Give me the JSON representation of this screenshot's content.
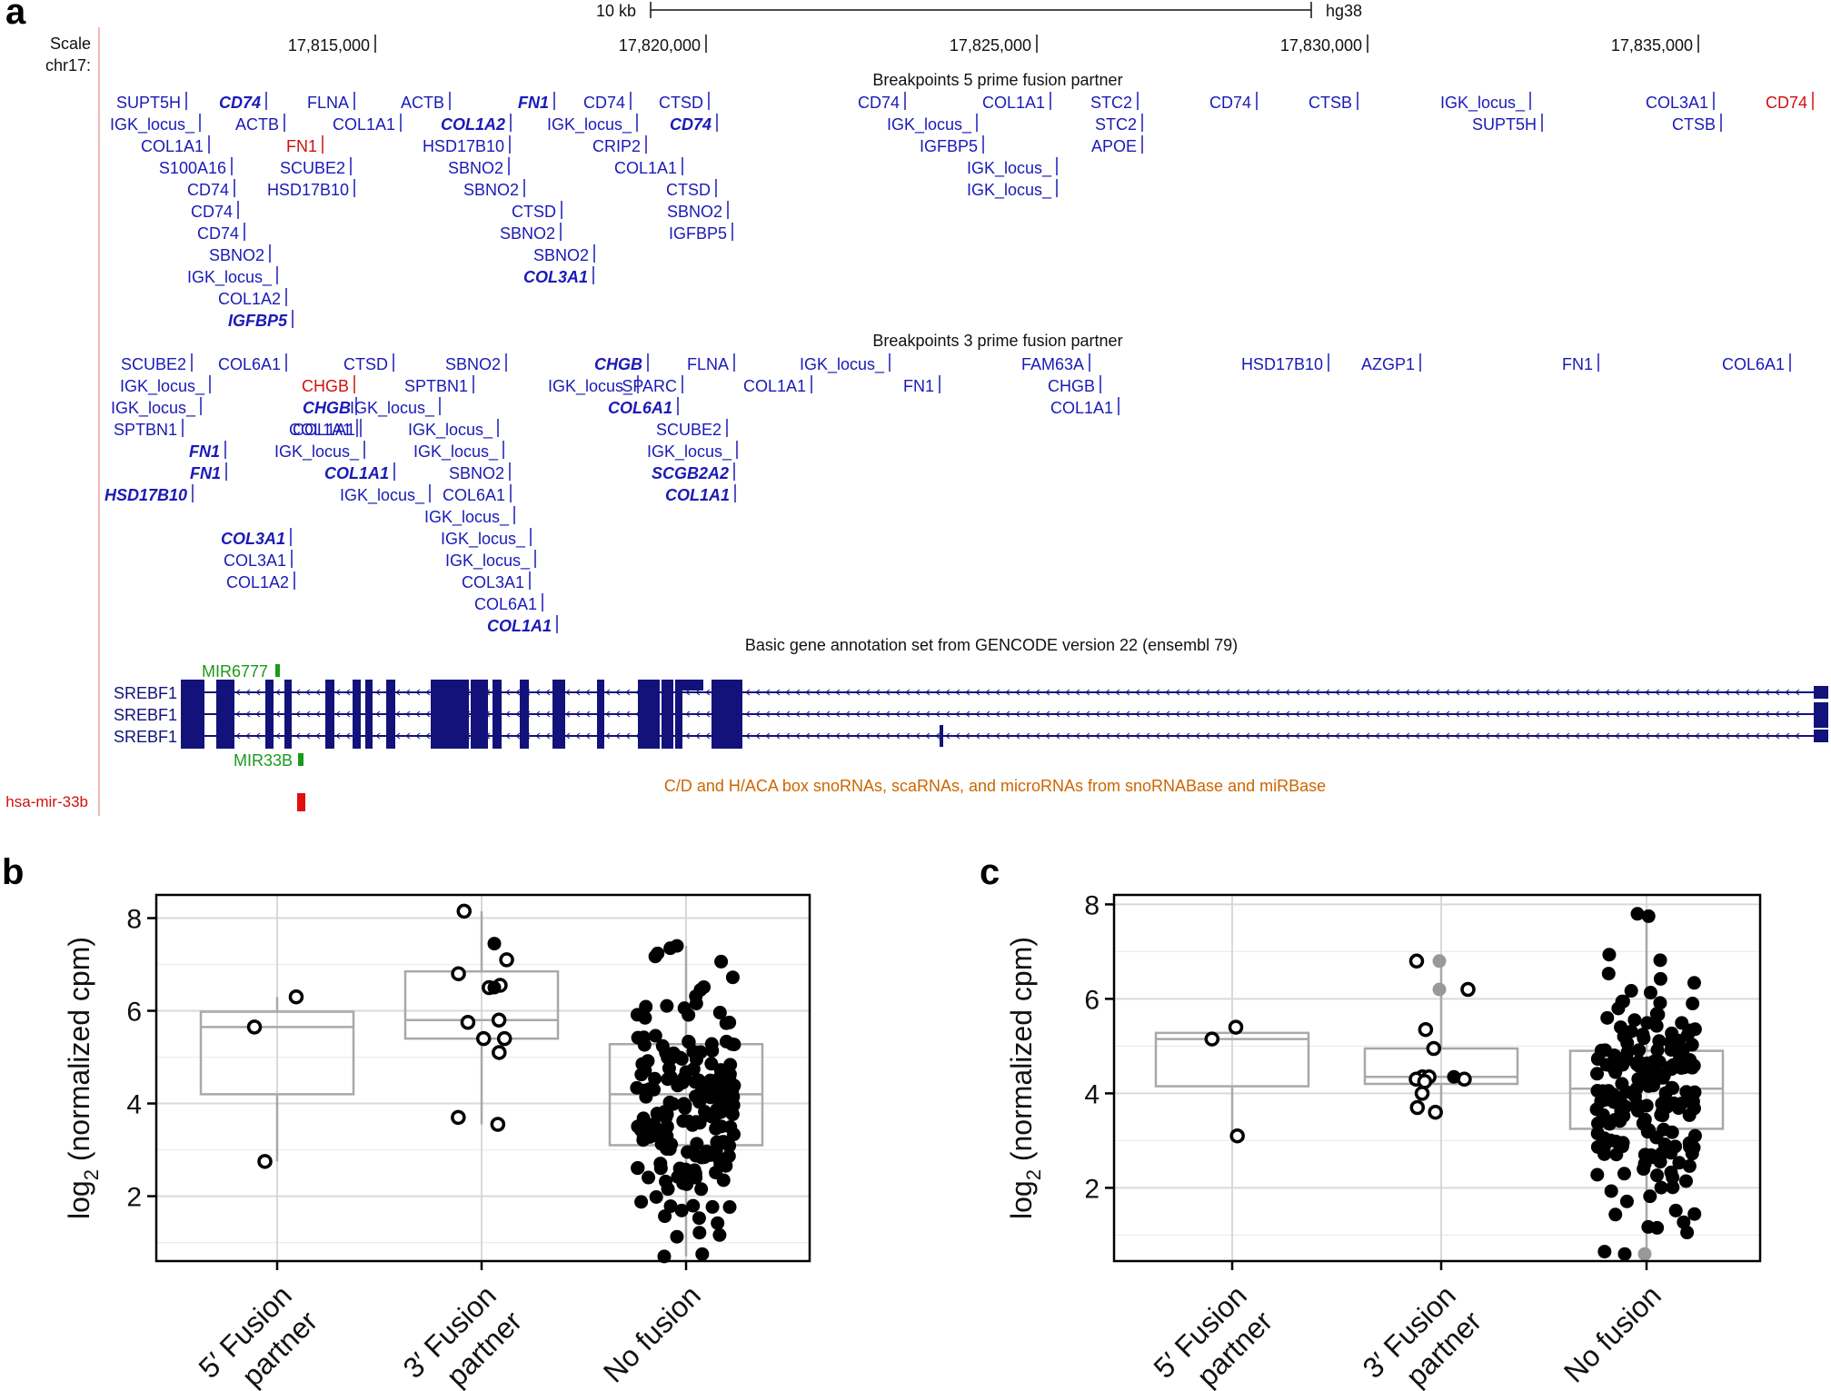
{
  "panel_a": {
    "panel_label": "a",
    "scale_bar_label": "10 kb",
    "assembly": "hg38",
    "scale_label": "Scale",
    "chrom_label": "chr17:",
    "positions": [
      {
        "bp": 17815000,
        "label": "17,815,000"
      },
      {
        "bp": 17820000,
        "label": "17,820,000"
      },
      {
        "bp": 17825000,
        "label": "17,825,000"
      },
      {
        "bp": 17830000,
        "label": "17,830,000"
      },
      {
        "bp": 17835000,
        "label": "17,835,000"
      }
    ],
    "track5_title": "Breakpoints 5 prime fusion partner",
    "track3_title": "Breakpoints 3 prime fusion partner",
    "gencode_title": "Basic gene annotation set from GENCODE version 22 (ensembl 79)",
    "snorna_title": "C/D and H/ACA box snoRNAs, scaRNAs, and microRNAs from snoRNABase and miRBase",
    "genes": [
      "SREBF1",
      "SREBF1",
      "SREBF1"
    ],
    "mirna_labels": [
      "MIR6777",
      "MIR33B"
    ],
    "hsa_mir": "hsa-mir-33b",
    "colors": {
      "feature": "#1a1ab8",
      "highlight": "#d01010",
      "mirna": "#1a9a1a",
      "gene": "#12127a",
      "snorna_title": "#cc6600"
    },
    "breakpoints_5prime": [
      {
        "label": "SUPT5H",
        "style": "n"
      },
      {
        "label": "IGK_locus_",
        "style": "n"
      },
      {
        "label": "COL1A1",
        "style": "n"
      },
      {
        "label": "S100A16",
        "style": "n"
      },
      {
        "label": "CD74",
        "style": "n"
      },
      {
        "label": "CD74",
        "style": "n"
      },
      {
        "label": "CD74",
        "style": "n"
      },
      {
        "label": "SBNO2",
        "style": "n"
      },
      {
        "label": "IGK_locus_",
        "style": "n"
      },
      {
        "label": "COL1A2",
        "style": "n"
      },
      {
        "label": "IGFBP5",
        "style": "b"
      },
      {
        "label": "CD74",
        "style": "b"
      },
      {
        "label": "ACTB",
        "style": "n"
      },
      {
        "label": "FN1",
        "style": "r"
      },
      {
        "label": "SCUBE2",
        "style": "n"
      },
      {
        "label": "HSD17B10",
        "style": "n"
      },
      {
        "label": "FLNA",
        "style": "n"
      },
      {
        "label": "COL1A1",
        "style": "n"
      },
      {
        "label": "ACTB",
        "style": "n"
      },
      {
        "label": "COL1A2",
        "style": "b"
      },
      {
        "label": "HSD17B10",
        "style": "n"
      },
      {
        "label": "SBNO2",
        "style": "n"
      },
      {
        "label": "SBNO2",
        "style": "n"
      },
      {
        "label": "CTSD",
        "style": "n"
      },
      {
        "label": "SBNO2",
        "style": "n"
      },
      {
        "label": "SBNO2",
        "style": "n"
      },
      {
        "label": "COL3A1",
        "style": "b"
      },
      {
        "label": "FN1",
        "style": "b"
      },
      {
        "label": "IGK_locus_",
        "style": "n"
      },
      {
        "label": "CD74",
        "style": "n"
      },
      {
        "label": "CRIP2",
        "style": "n"
      },
      {
        "label": "COL1A1",
        "style": "n"
      },
      {
        "label": "CTSD",
        "style": "n"
      },
      {
        "label": "CD74",
        "style": "b"
      },
      {
        "label": "CTSD",
        "style": "n"
      },
      {
        "label": "SBNO2",
        "style": "n"
      },
      {
        "label": "IGFBP5",
        "style": "n"
      },
      {
        "label": "CD74",
        "style": "n"
      },
      {
        "label": "IGK_locus_",
        "style": "n"
      },
      {
        "label": "IGFBP5",
        "style": "n"
      },
      {
        "label": "COL1A1",
        "style": "n"
      },
      {
        "label": "IGK_locus_",
        "style": "n"
      },
      {
        "label": "IGK_locus_",
        "style": "n"
      },
      {
        "label": "STC2",
        "style": "n"
      },
      {
        "label": "STC2",
        "style": "n"
      },
      {
        "label": "APOE",
        "style": "n"
      },
      {
        "label": "CD74",
        "style": "n"
      },
      {
        "label": "CTSB",
        "style": "n"
      },
      {
        "label": "IGK_locus_",
        "style": "n"
      },
      {
        "label": "SUPT5H",
        "style": "n"
      },
      {
        "label": "COL3A1",
        "style": "n"
      },
      {
        "label": "CTSB",
        "style": "n"
      },
      {
        "label": "CD74",
        "style": "r"
      }
    ],
    "breakpoints_3prime": [
      {
        "label": "SCUBE2",
        "style": "n"
      },
      {
        "label": "IGK_locus_",
        "style": "n"
      },
      {
        "label": "IGK_locus_",
        "style": "n"
      },
      {
        "label": "SPTBN1",
        "style": "n"
      },
      {
        "label": "FN1",
        "style": "b"
      },
      {
        "label": "FN1",
        "style": "b"
      },
      {
        "label": "HSD17B10",
        "style": "b"
      },
      {
        "label": "COL6A1",
        "style": "n"
      },
      {
        "label": "COL1A1",
        "style": "n"
      },
      {
        "label": "COL3A1",
        "style": "b"
      },
      {
        "label": "COL3A1",
        "style": "n"
      },
      {
        "label": "COL1A2",
        "style": "n"
      },
      {
        "label": "CTSD",
        "style": "n"
      },
      {
        "label": "CHGB",
        "style": "r"
      },
      {
        "label": "CHGB",
        "style": "b"
      },
      {
        "label": "COL1A1",
        "style": "n"
      },
      {
        "label": "IGK_locus_",
        "style": "n"
      },
      {
        "label": "COL1A1",
        "style": "b"
      },
      {
        "label": "IGK_locus_",
        "style": "n"
      },
      {
        "label": "SBNO2",
        "style": "n"
      },
      {
        "label": "SPTBN1",
        "style": "n"
      },
      {
        "label": "IGK_locus_",
        "style": "n"
      },
      {
        "label": "IGK_locus_",
        "style": "n"
      },
      {
        "label": "IGK_locus_",
        "style": "n"
      },
      {
        "label": "SBNO2",
        "style": "n"
      },
      {
        "label": "COL6A1",
        "style": "n"
      },
      {
        "label": "IGK_locus_",
        "style": "n"
      },
      {
        "label": "IGK_locus_",
        "style": "n"
      },
      {
        "label": "IGK_locus_",
        "style": "n"
      },
      {
        "label": "COL3A1",
        "style": "n"
      },
      {
        "label": "COL6A1",
        "style": "n"
      },
      {
        "label": "COL1A1",
        "style": "b"
      },
      {
        "label": "IGK_locus_",
        "style": "n"
      },
      {
        "label": "CHGB",
        "style": "b"
      },
      {
        "label": "SPARC",
        "style": "n"
      },
      {
        "label": "COL6A1",
        "style": "b"
      },
      {
        "label": "SCUBE2",
        "style": "n"
      },
      {
        "label": "IGK_locus_",
        "style": "n"
      },
      {
        "label": "SCGB2A2",
        "style": "b"
      },
      {
        "label": "COL1A1",
        "style": "b"
      },
      {
        "label": "FLNA",
        "style": "n"
      },
      {
        "label": "COL1A1",
        "style": "n"
      },
      {
        "label": "IGK_locus_",
        "style": "n"
      },
      {
        "label": "FN1",
        "style": "n"
      },
      {
        "label": "FAM63A",
        "style": "n"
      },
      {
        "label": "CHGB",
        "style": "n"
      },
      {
        "label": "COL1A1",
        "style": "n"
      },
      {
        "label": "HSD17B10",
        "style": "n"
      },
      {
        "label": "AZGP1",
        "style": "n"
      },
      {
        "label": "FN1",
        "style": "n"
      },
      {
        "label": "COL6A1",
        "style": "n"
      }
    ]
  },
  "chart_data": [
    {
      "panel_label": "b",
      "type": "scatter",
      "subtype": "boxplot_with_jitter",
      "ylabel": "log",
      "ylabel_sub": "2",
      "ylabel_rest": " (normalized cpm)",
      "ylim": [
        0.6,
        8.5
      ],
      "yticks": [
        2,
        4,
        6,
        8
      ],
      "categories": [
        {
          "line1": "5′ Fusion",
          "line2": "partner"
        },
        {
          "line1": "3′ Fusion",
          "line2": "partner"
        },
        {
          "line1": "No fusion",
          "line2": ""
        }
      ],
      "boxes": [
        {
          "q1": 4.2,
          "median": 5.65,
          "q3": 5.98,
          "lo": 2.75,
          "hi": 6.3
        },
        {
          "q1": 5.4,
          "median": 5.8,
          "q3": 6.85,
          "lo": 3.55,
          "hi": 8.15
        },
        {
          "q1": 3.1,
          "median": 4.2,
          "q3": 5.28,
          "lo": 0.7,
          "hi": 7.4
        }
      ],
      "points_open": [
        [
          0,
          6.3
        ],
        [
          0,
          5.65
        ],
        [
          0,
          2.75
        ],
        [
          1,
          8.15
        ],
        [
          1,
          7.1
        ],
        [
          1,
          6.8
        ],
        [
          1,
          6.55
        ],
        [
          1,
          6.5
        ],
        [
          1,
          5.8
        ],
        [
          1,
          5.75
        ],
        [
          1,
          5.4
        ],
        [
          1,
          5.4
        ],
        [
          1,
          5.1
        ],
        [
          1,
          3.7
        ],
        [
          1,
          3.55
        ]
      ],
      "points_filled": [
        [
          1,
          7.45
        ],
        [
          1,
          6.5
        ]
      ],
      "points_grey": [],
      "cloud": {
        "category": 2,
        "n": 190,
        "mean": 4.1,
        "sd": 1.3,
        "min": 0.7,
        "max": 7.4,
        "seed": 11
      }
    },
    {
      "panel_label": "c",
      "type": "scatter",
      "subtype": "boxplot_with_jitter",
      "ylabel": "log",
      "ylabel_sub": "2",
      "ylabel_rest": " (normalized cpm)",
      "ylim": [
        0.45,
        8.2
      ],
      "yticks": [
        2,
        4,
        6,
        8
      ],
      "categories": [
        {
          "line1": "5′ Fusion",
          "line2": "partner"
        },
        {
          "line1": "3′ Fusion",
          "line2": "partner"
        },
        {
          "line1": "No fusion",
          "line2": ""
        }
      ],
      "boxes": [
        {
          "q1": 4.15,
          "median": 5.15,
          "q3": 5.28,
          "lo": 3.1,
          "hi": 5.4
        },
        {
          "q1": 4.2,
          "median": 4.35,
          "q3": 4.95,
          "lo": 3.6,
          "hi": 6.8
        },
        {
          "q1": 3.25,
          "median": 4.1,
          "q3": 4.9,
          "lo": 0.6,
          "hi": 7.8
        }
      ],
      "points_open": [
        [
          0,
          5.4
        ],
        [
          0,
          5.15
        ],
        [
          0,
          3.1
        ],
        [
          1,
          6.8
        ],
        [
          1,
          6.2
        ],
        [
          1,
          5.35
        ],
        [
          1,
          4.95
        ],
        [
          1,
          4.35
        ],
        [
          1,
          4.35
        ],
        [
          1,
          4.3
        ],
        [
          1,
          4.3
        ],
        [
          1,
          4.25
        ],
        [
          1,
          4.0
        ],
        [
          1,
          3.7
        ],
        [
          1,
          3.6
        ]
      ],
      "points_filled": [
        [
          1,
          4.35
        ]
      ],
      "points_grey": [
        [
          1,
          6.8
        ],
        [
          1,
          6.2
        ],
        [
          2,
          0.6
        ]
      ],
      "cloud": {
        "category": 2,
        "n": 190,
        "mean": 4.05,
        "sd": 1.2,
        "min": 0.6,
        "max": 7.8,
        "seed": 29
      }
    }
  ]
}
